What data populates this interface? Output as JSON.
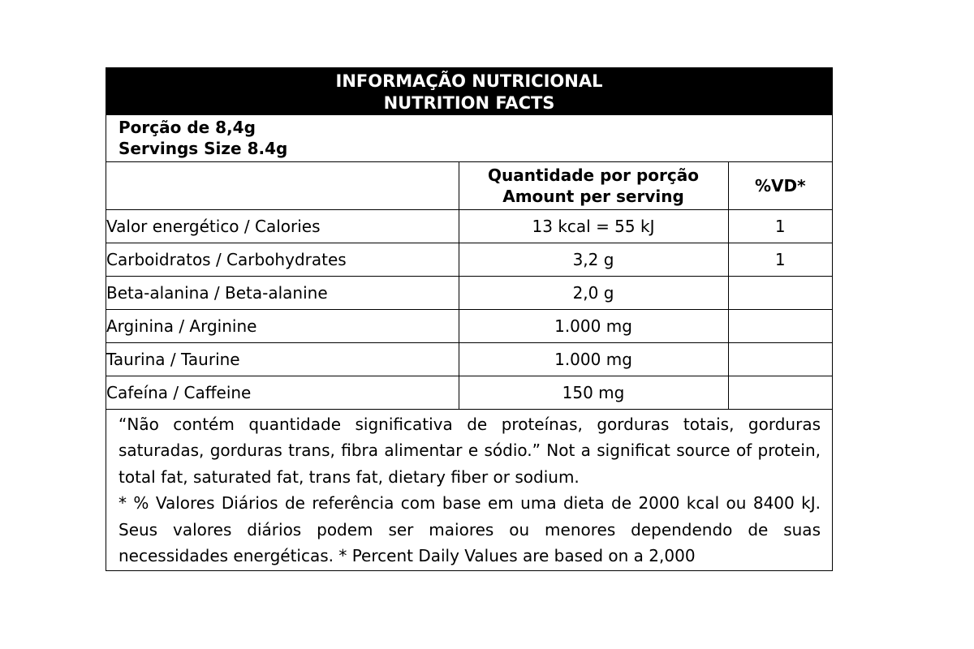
{
  "header": {
    "title_pt": "INFORMAÇÃO NUTRICIONAL",
    "title_en": "NUTRITION FACTS"
  },
  "serving": {
    "pt": "Porção de 8,4g",
    "en": "Servings Size 8.4g"
  },
  "table": {
    "col_amount_pt": "Quantidade por porção",
    "col_amount_en": "Amount per serving",
    "col_dv": "%VD*",
    "rows": [
      {
        "name": "Valor energético / Calories",
        "amount": "13 kcal = 55 kJ",
        "dv": "1"
      },
      {
        "name": "Carboidratos / Carbohydrates",
        "amount": "3,2 g",
        "dv": "1"
      },
      {
        "name": "Beta-alanina / Beta-alanine",
        "amount": "2,0 g",
        "dv": ""
      },
      {
        "name": "Arginina / Arginine",
        "amount": "1.000 mg",
        "dv": ""
      },
      {
        "name": "Taurina / Taurine",
        "amount": "1.000 mg",
        "dv": ""
      },
      {
        "name": "Cafeína / Caffeine",
        "amount": "150 mg",
        "dv": ""
      }
    ]
  },
  "notes": {
    "note1": "“Não contém quantidade significativa de proteínas, gorduras totais, gorduras saturadas, gorduras trans, fibra alimentar e sódio.” Not a significat source of protein, total fat, saturated fat, trans fat, dietary fiber or sodium.",
    "note2": "* % Valores Diários de referência com base em uma dieta de 2000 kcal ou 8400 kJ. Seus valores diários podem ser maiores ou menores dependendo de suas necessidades energéticas. * Percent Daily Values are based on a 2,000"
  }
}
